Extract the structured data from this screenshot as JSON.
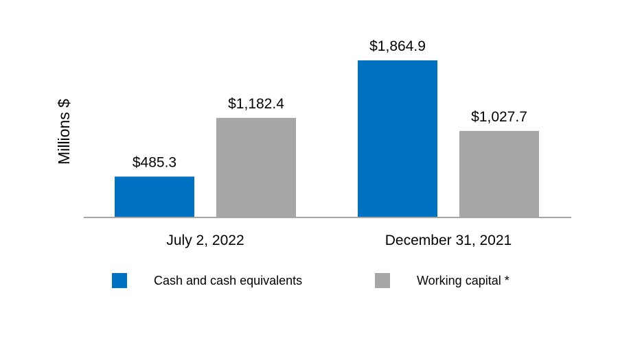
{
  "chart_data": {
    "type": "bar",
    "ylabel": "Millions $",
    "categories": [
      "July 2, 2022",
      "December 31, 2021"
    ],
    "series": [
      {
        "name": "Cash and cash equivalents",
        "color": "#0070c0",
        "values": [
          485.3,
          1864.9
        ],
        "labels": [
          "$485.3",
          "$1,864.9"
        ]
      },
      {
        "name": "Working capital *",
        "color": "#a6a6a6",
        "values": [
          1182.4,
          1027.7
        ],
        "labels": [
          "$1,182.4",
          "$1,027.7"
        ]
      }
    ],
    "ylim": [
      0,
      1864.9
    ],
    "grid": false,
    "legend_position": "bottom"
  }
}
